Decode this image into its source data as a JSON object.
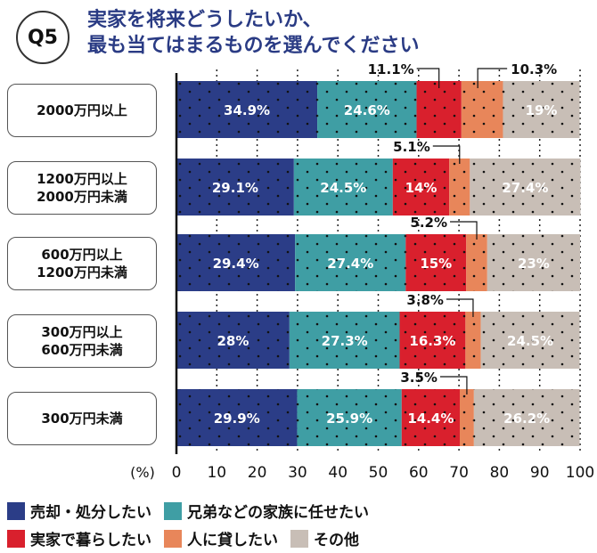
{
  "question": "Q5",
  "title_lines": [
    "実家を将来どうしたいか、",
    "最も当てはまるものを選んでください"
  ],
  "chart_data": {
    "type": "bar",
    "stacked": true,
    "orientation": "horizontal",
    "title": "実家を将来どうしたいか、最も当てはまるものを選んでください",
    "xlabel": "(%)",
    "xlim": [
      0,
      100
    ],
    "xticks": [
      "0",
      "10",
      "20",
      "30",
      "40",
      "50",
      "60",
      "70",
      "80",
      "90",
      "100"
    ],
    "categories": [
      "2000万円以上",
      "1200万円以上\n2000万円未満",
      "600万円以上\n1200万円未満",
      "300万円以上\n600万円未満",
      "300万円未満"
    ],
    "series": [
      {
        "name": "売却・処分したい",
        "color": "#2b3d87",
        "values": [
          34.9,
          29.1,
          29.4,
          28,
          29.9
        ],
        "labels": [
          "34.9%",
          "29.1%",
          "29.4%",
          "28%",
          "29.9%"
        ]
      },
      {
        "name": "兄弟などの家族に任せたい",
        "color": "#3f9ea4",
        "values": [
          24.6,
          24.5,
          27.4,
          27.3,
          25.9
        ],
        "labels": [
          "24.6%",
          "24.5%",
          "27.4%",
          "27.3%",
          "25.9%"
        ]
      },
      {
        "name": "実家で暮らしたい",
        "color": "#d9202d",
        "values": [
          11.1,
          14,
          15,
          16.3,
          14.4
        ],
        "labels": [
          "11.1%",
          "14%",
          "15%",
          "16.3%",
          "14.4%"
        ]
      },
      {
        "name": "人に貸したい",
        "color": "#e8865a",
        "values": [
          10.3,
          5.1,
          5.2,
          3.8,
          3.5
        ],
        "labels": [
          "10.3%",
          "5.1%",
          "5.2%",
          "3.8%",
          "3.5%"
        ]
      },
      {
        "name": "その他",
        "color": "#c8beb6",
        "values": [
          19,
          27.4,
          23,
          24.5,
          26.2
        ],
        "labels": [
          "19%",
          "27.4%",
          "23%",
          "24.5%",
          "26.2%"
        ]
      }
    ],
    "legend": "bottom"
  }
}
